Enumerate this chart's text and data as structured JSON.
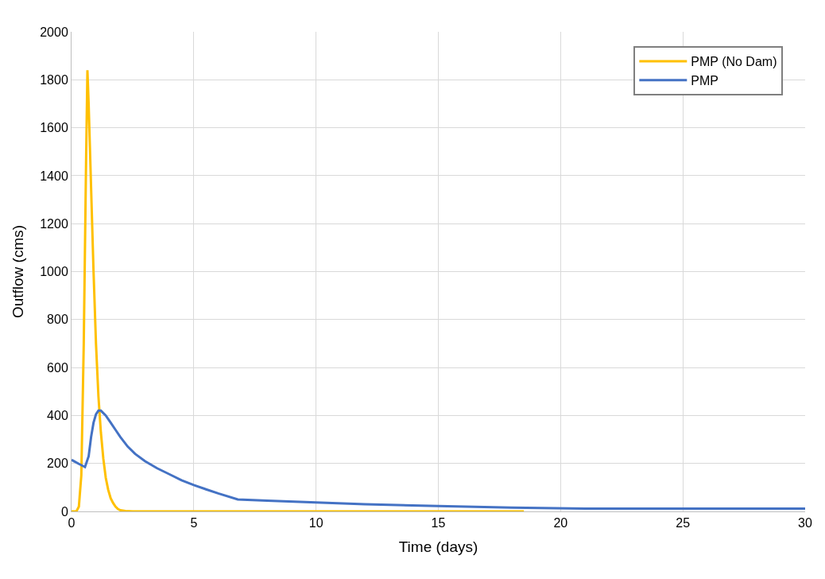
{
  "chart_data": {
    "type": "line",
    "xlabel": "Time (days)",
    "ylabel": "Outflow (cms)",
    "xlim": [
      0,
      30
    ],
    "xticks": [
      0,
      5,
      10,
      15,
      20,
      25,
      30
    ],
    "ylim": [
      0,
      2000
    ],
    "yticks": [
      0,
      200,
      400,
      600,
      800,
      1000,
      1200,
      1400,
      1600,
      1800,
      2000
    ],
    "grid": true,
    "legend": "top right",
    "marker": "none",
    "line_style": "solid",
    "series": [
      {
        "name": "PMP (No Dam)",
        "color": "#ffc000",
        "x": [
          0,
          0.2,
          0.3,
          0.4,
          0.5,
          0.6,
          0.65,
          0.7,
          0.8,
          0.9,
          1.0,
          1.1,
          1.2,
          1.3,
          1.4,
          1.5,
          1.6,
          1.7,
          1.8,
          1.9,
          2.0,
          2.2,
          2.5,
          5,
          10,
          15,
          18.5
        ],
        "values": [
          0,
          0,
          20,
          150,
          700,
          1500,
          1840,
          1700,
          1350,
          1000,
          700,
          480,
          330,
          220,
          140,
          90,
          55,
          35,
          20,
          10,
          5,
          2,
          0,
          0,
          0,
          0,
          0
        ]
      },
      {
        "name": "PMP",
        "color": "#4472c4",
        "x": [
          0,
          0.3,
          0.55,
          0.7,
          0.8,
          0.9,
          1.0,
          1.1,
          1.2,
          1.4,
          1.6,
          1.8,
          2.0,
          2.3,
          2.6,
          3.0,
          3.5,
          4,
          4.5,
          5,
          5.5,
          6,
          6.8,
          8,
          10,
          12,
          15,
          18,
          21,
          25,
          30
        ],
        "values": [
          215,
          198,
          185,
          230,
          310,
          370,
          405,
          420,
          420,
          400,
          370,
          340,
          310,
          270,
          240,
          210,
          180,
          155,
          130,
          110,
          92,
          75,
          50,
          45,
          37,
          30,
          22,
          16,
          12,
          12,
          12
        ]
      }
    ]
  }
}
